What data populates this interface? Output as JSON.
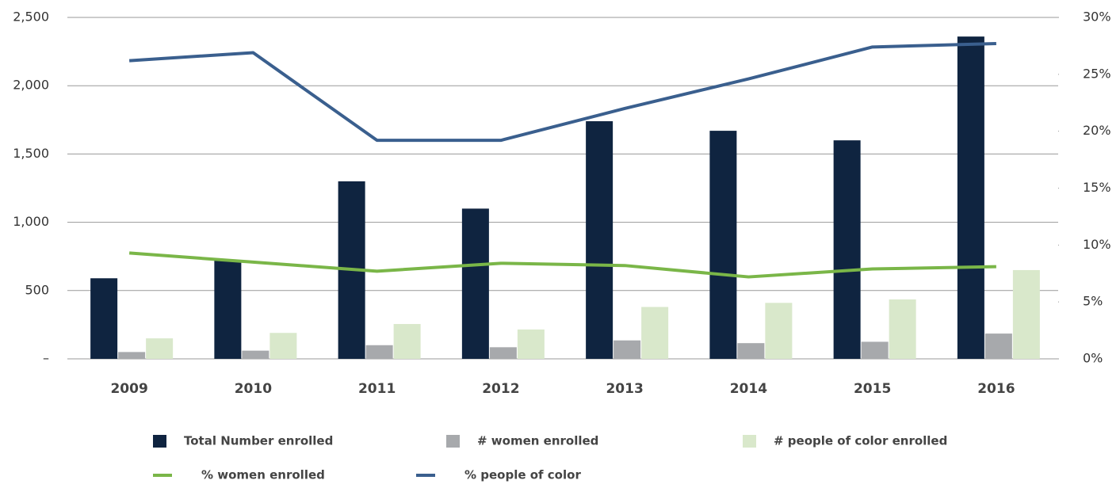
{
  "chart_data": {
    "type": "bar",
    "categories": [
      "2009",
      "2010",
      "2011",
      "2012",
      "2013",
      "2014",
      "2015",
      "2016"
    ],
    "series": [
      {
        "name": "Total Number enrolled",
        "type": "bar",
        "color": "#0f2440",
        "values": [
          590,
          720,
          1300,
          1100,
          1740,
          1670,
          1600,
          2360
        ]
      },
      {
        "name": "# women enrolled",
        "type": "bar",
        "color": "#a7a9ac",
        "values": [
          50,
          60,
          100,
          85,
          135,
          115,
          125,
          185
        ]
      },
      {
        "name": "# people of color enrolled",
        "type": "bar",
        "color": "#d9e8cb",
        "values": [
          150,
          190,
          255,
          215,
          380,
          410,
          435,
          650
        ]
      },
      {
        "name": "% women enrolled",
        "type": "line",
        "axis": "y2",
        "color": "#7ab648",
        "values": [
          9.3,
          8.5,
          7.7,
          8.4,
          8.2,
          7.2,
          7.9,
          8.1
        ]
      },
      {
        "name": "% people of color",
        "type": "line",
        "axis": "y2",
        "color": "#3a5f8e",
        "values": [
          26.2,
          26.9,
          19.2,
          19.2,
          22.0,
          24.6,
          27.4,
          27.7
        ]
      }
    ],
    "ylim": [
      0,
      2500
    ],
    "yticks": [
      {
        "value": 0,
        "label": "–"
      },
      500,
      {
        "value": 1000,
        "label": "1,000"
      },
      {
        "value": 1500,
        "label": "1,500"
      },
      {
        "value": 2000,
        "label": "2,000"
      },
      {
        "value": 2500,
        "label": "2,500"
      }
    ],
    "y2lim": [
      0,
      30
    ],
    "y2ticks": [
      {
        "value": 0,
        "label": "0%"
      },
      {
        "value": 5,
        "label": "5%"
      },
      {
        "value": 10,
        "label": "10%"
      },
      {
        "value": 15,
        "label": "15%"
      },
      {
        "value": 20,
        "label": "20%"
      },
      {
        "value": 25,
        "label": "25%"
      },
      {
        "value": 30,
        "label": "30%"
      }
    ],
    "grid": true,
    "legend": "bottom"
  }
}
